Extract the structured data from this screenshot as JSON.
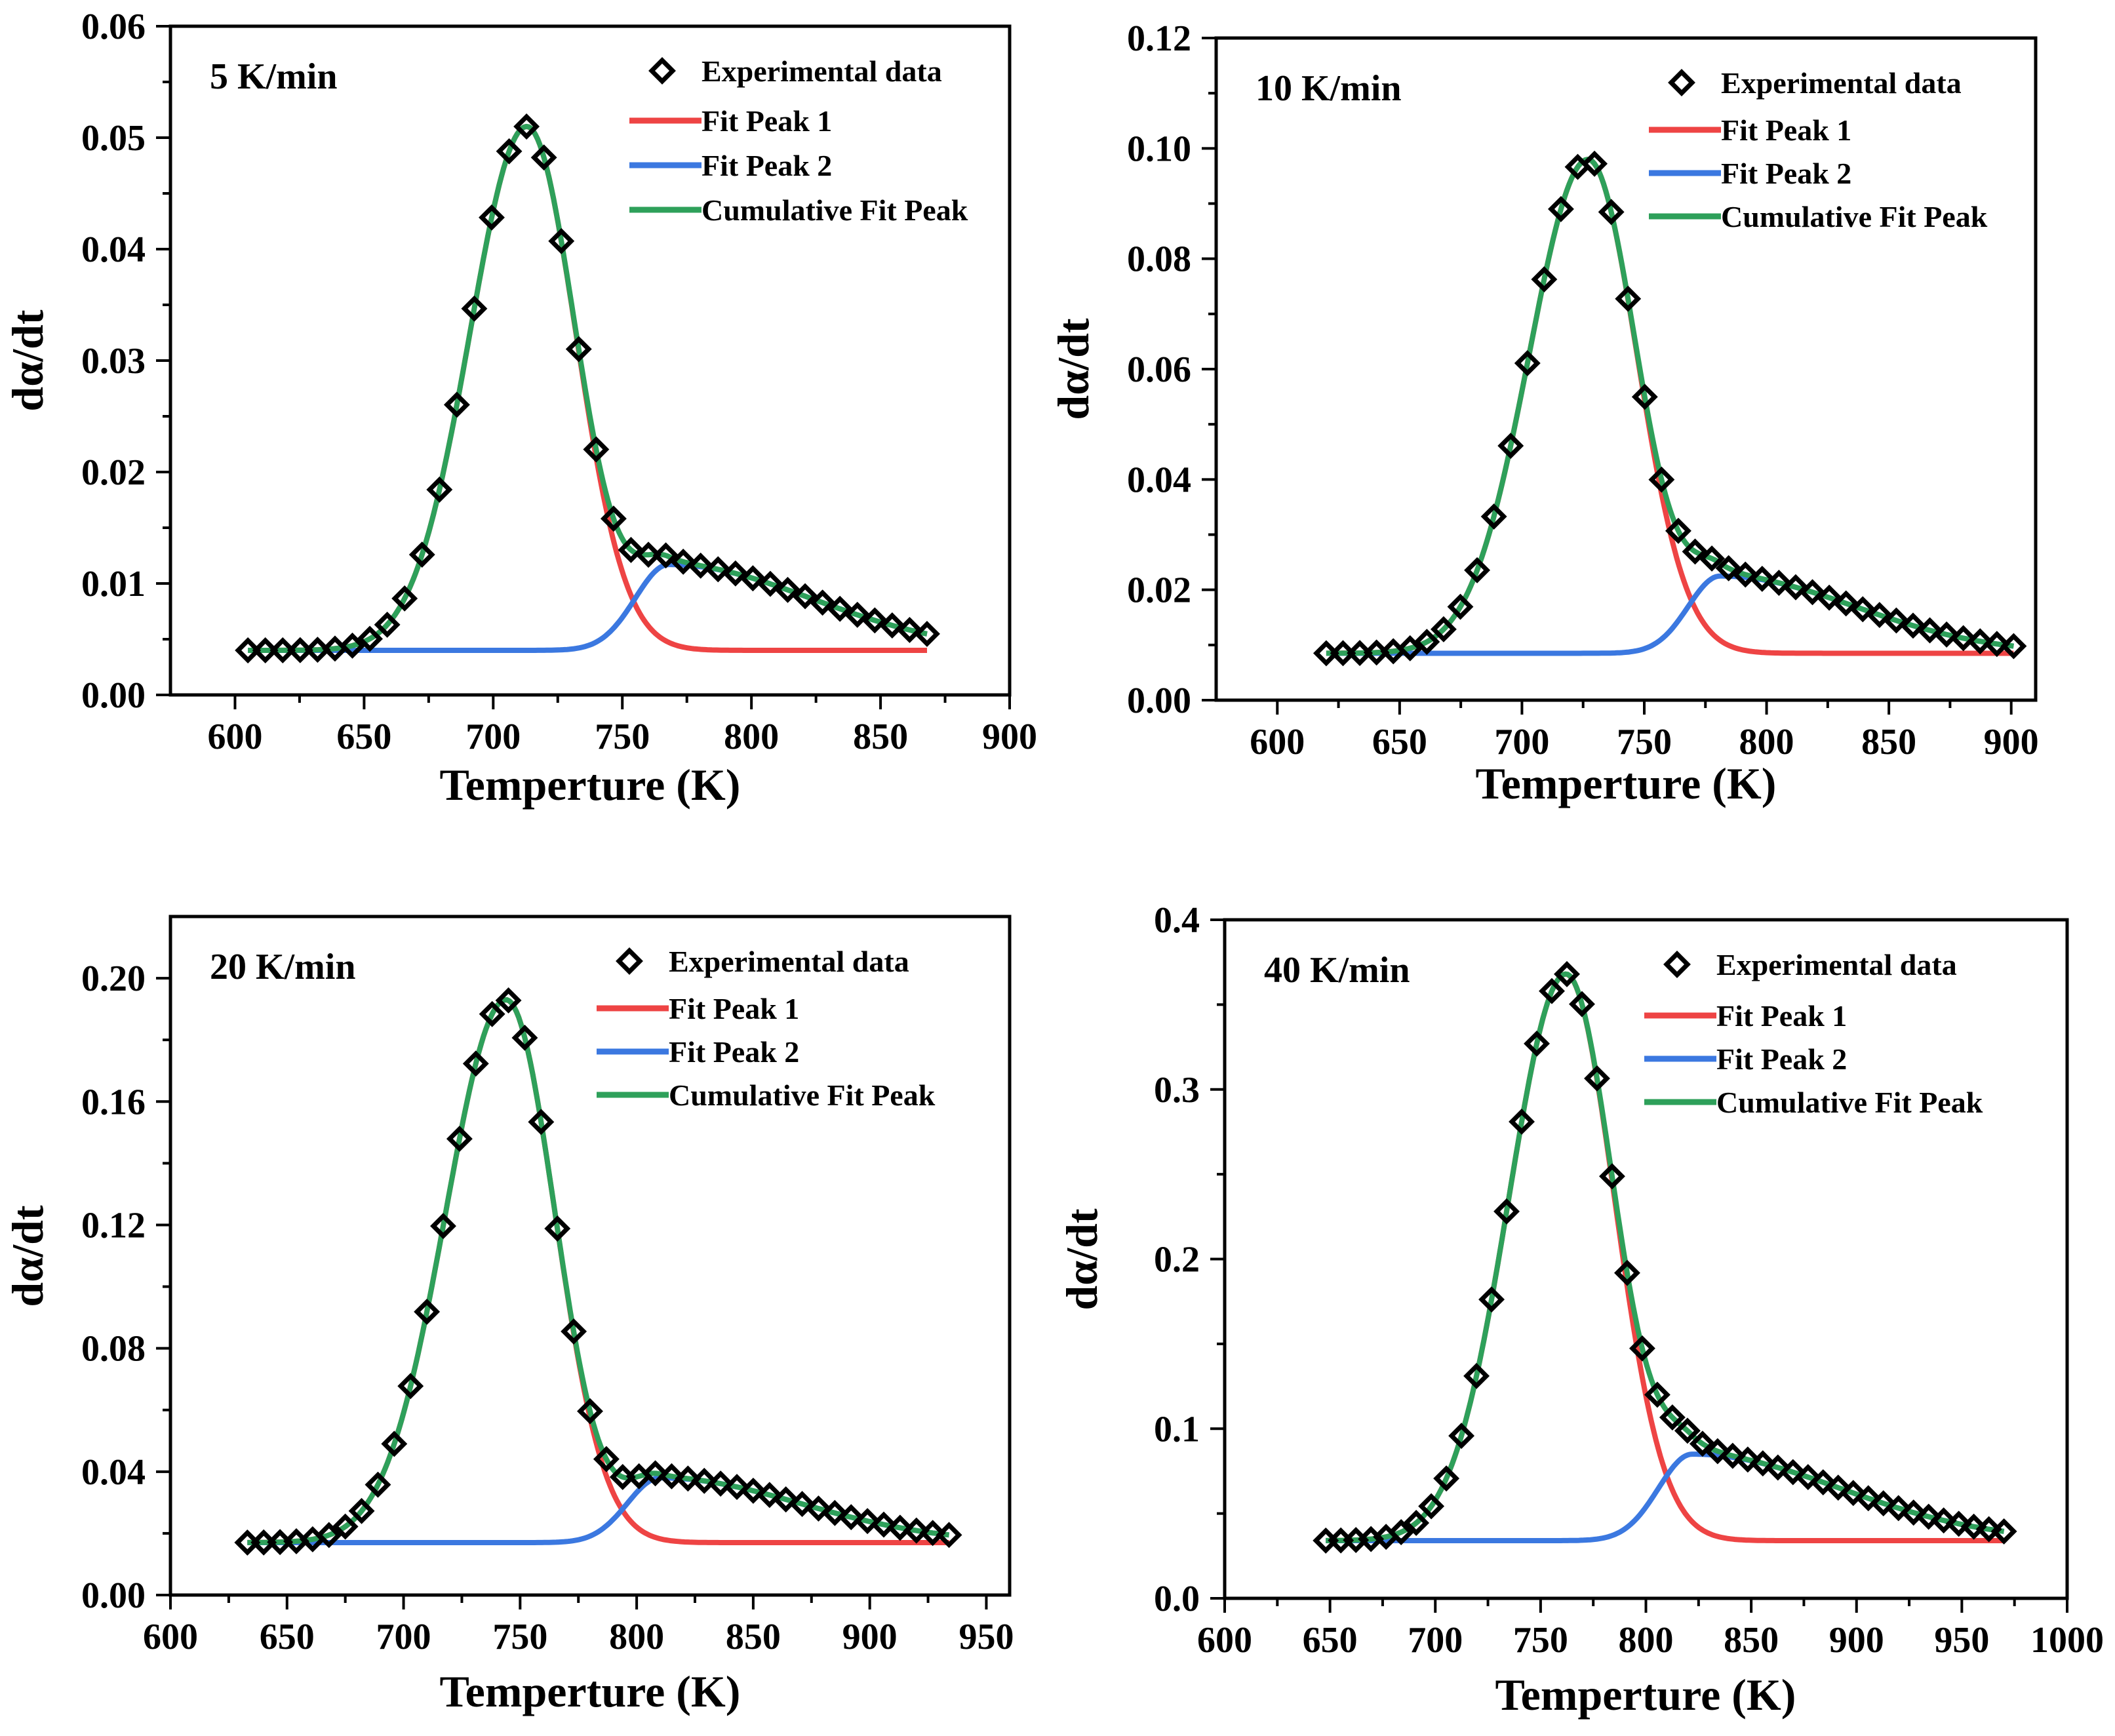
{
  "colors": {
    "peak1": "#ee4444",
    "peak2": "#3b78e0",
    "cumulative": "#2ea05a",
    "marker": "#000000"
  },
  "legend": {
    "experimental": "Experimental data",
    "peak1": "Fit Peak 1",
    "peak2": "Fit Peak 2",
    "cumulative": "Cumulative Fit Peak"
  },
  "chart_data": [
    {
      "type": "line",
      "title": "5 K/min",
      "xlabel": "Temperture (K)",
      "ylabel": "dα/dt",
      "xlim": [
        575,
        900
      ],
      "ylim": [
        0,
        0.06
      ],
      "xticks": [
        600,
        650,
        700,
        750,
        800,
        850,
        900
      ],
      "xtick_labels": [
        "600",
        "650",
        "700",
        "750",
        "800",
        "850",
        "900"
      ],
      "yticks": [
        0,
        0.01,
        0.02,
        0.03,
        0.04,
        0.05,
        0.06
      ],
      "ytick_labels": [
        "0.00",
        "0.01",
        "0.02",
        "0.03",
        "0.04",
        "0.05",
        "0.06"
      ],
      "x_range": [
        605,
        868
      ],
      "baseline": 0.004,
      "peak1": {
        "center": 713,
        "amplitude": 0.047,
        "sigma_left": 22,
        "sigma_right": 19
      },
      "peak2": {
        "center": 768,
        "amplitude": 0.0077,
        "sigma_left": 13,
        "sigma_right": 55
      },
      "experimental_points": {
        "start": 605,
        "end": 868,
        "count": 40
      }
    },
    {
      "type": "line",
      "title": "10 K/min",
      "xlabel": "Temperture (K)",
      "ylabel": "dα/dt",
      "xlim": [
        575,
        910
      ],
      "ylim": [
        0,
        0.12
      ],
      "xticks": [
        600,
        650,
        700,
        750,
        800,
        850,
        900
      ],
      "xtick_labels": [
        "600",
        "650",
        "700",
        "750",
        "800",
        "850",
        "900"
      ],
      "yticks": [
        0,
        0.02,
        0.04,
        0.06,
        0.08,
        0.1,
        0.12
      ],
      "ytick_labels": [
        "0.00",
        "0.02",
        "0.04",
        "0.06",
        "0.08",
        "0.10",
        "0.12"
      ],
      "x_range": [
        620,
        901
      ],
      "baseline": 0.0085,
      "peak1": {
        "center": 727,
        "amplitude": 0.0895,
        "sigma_left": 24,
        "sigma_right": 20
      },
      "peak2": {
        "center": 781,
        "amplitude": 0.014,
        "sigma_left": 13,
        "sigma_right": 55
      },
      "experimental_points": {
        "start": 620,
        "end": 901,
        "count": 42
      }
    },
    {
      "type": "line",
      "title": "20 K/min",
      "xlabel": "Temperture (K)",
      "ylabel": "dα/dt",
      "xlim": [
        600,
        960
      ],
      "ylim": [
        0,
        0.22
      ],
      "xticks": [
        600,
        650,
        700,
        750,
        800,
        850,
        900,
        950
      ],
      "xtick_labels": [
        "600",
        "650",
        "700",
        "750",
        "800",
        "850",
        "900",
        "950"
      ],
      "yticks": [
        0,
        0.04,
        0.08,
        0.12,
        0.16,
        0.2
      ],
      "ytick_labels": [
        "0.00",
        "0.04",
        "0.08",
        "0.12",
        "0.16",
        "0.20"
      ],
      "x_range": [
        633,
        934
      ],
      "baseline": 0.017,
      "peak1": {
        "center": 744,
        "amplitude": 0.176,
        "sigma_left": 26,
        "sigma_right": 21
      },
      "peak2": {
        "center": 810,
        "amplitude": 0.021,
        "sigma_left": 14,
        "sigma_right": 60
      },
      "experimental_points": {
        "start": 633,
        "end": 934,
        "count": 44
      }
    },
    {
      "type": "line",
      "title": "40 K/min",
      "xlabel": "Temperture (K)",
      "ylabel": "dα/dt",
      "xlim": [
        600,
        1000
      ],
      "ylim": [
        0,
        0.4
      ],
      "xticks": [
        600,
        650,
        700,
        750,
        800,
        850,
        900,
        950,
        1000
      ],
      "xtick_labels": [
        "600",
        "650",
        "700",
        "750",
        "800",
        "850",
        "900",
        "950",
        "1000"
      ],
      "yticks": [
        0,
        0.1,
        0.2,
        0.3,
        0.4
      ],
      "ytick_labels": [
        "0.0",
        "0.1",
        "0.2",
        "0.3",
        "0.4"
      ],
      "x_range": [
        648,
        970
      ],
      "baseline": 0.034,
      "peak1": {
        "center": 762,
        "amplitude": 0.334,
        "sigma_left": 27,
        "sigma_right": 23
      },
      "peak2": {
        "center": 822,
        "amplitude": 0.051,
        "sigma_left": 16,
        "sigma_right": 70
      },
      "experimental_points": {
        "start": 648,
        "end": 970,
        "count": 46
      }
    }
  ]
}
